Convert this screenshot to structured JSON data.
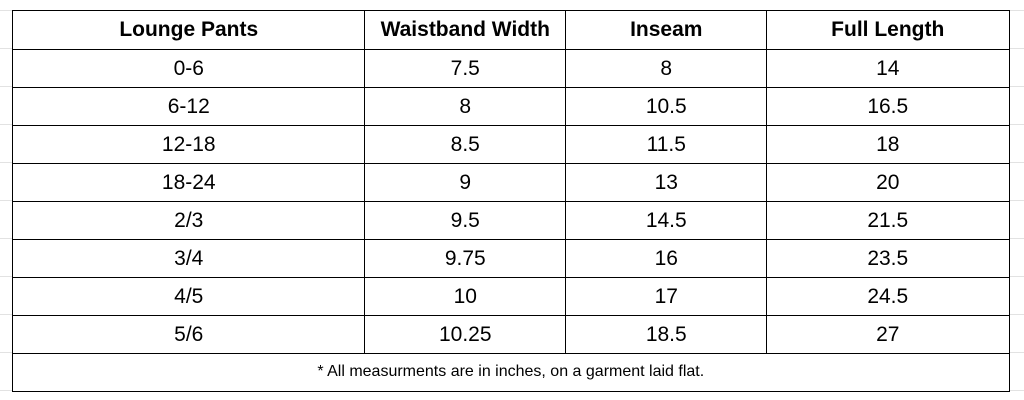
{
  "table": {
    "header": [
      "Lounge Pants",
      "Waistband Width",
      "Inseam",
      "Full Length"
    ],
    "rows": [
      [
        "0-6",
        7.5,
        8,
        14
      ],
      [
        "6-12",
        8,
        10.5,
        16.5
      ],
      [
        "12-18",
        8.5,
        11.5,
        18
      ],
      [
        "18-24",
        9,
        13,
        20
      ],
      [
        "2/3",
        9.5,
        14.5,
        21.5
      ],
      [
        "3/4",
        9.75,
        16,
        23.5
      ],
      [
        "4/5",
        10,
        17,
        24.5
      ],
      [
        "5/6",
        10.25,
        18.5,
        27
      ]
    ],
    "note": "* All measurments are in inches, on a garment laid flat."
  }
}
